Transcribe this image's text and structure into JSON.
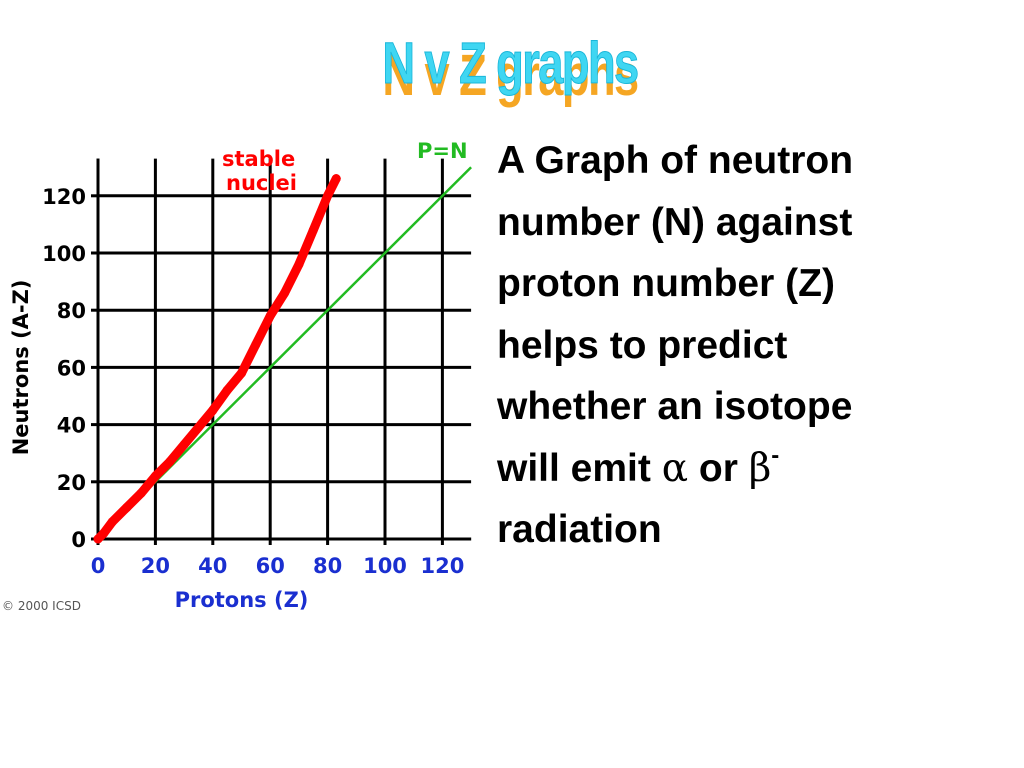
{
  "slide": {
    "title": "N v Z graphs",
    "copyright": "© 2000 ICSD"
  },
  "description": {
    "line1": "A Graph of neutron",
    "line2": "number (N) against",
    "line3": "proton number (Z)",
    "line4": "helps to predict",
    "line5_prefix": "whether an isotope",
    "line6_prefix": "will emit ",
    "alpha": "α",
    "or": " or ",
    "beta": "β",
    "beta_sup": "-",
    "line7": "radiation"
  },
  "chart_data": {
    "type": "line",
    "xlabel": "Protons  (Z)",
    "ylabel": "Neutrons  (A-Z)",
    "xlim": [
      0,
      130
    ],
    "ylim": [
      0,
      133
    ],
    "xticks": [
      0,
      20,
      40,
      60,
      80,
      100,
      120
    ],
    "yticks": [
      0,
      20,
      40,
      60,
      80,
      100,
      120
    ],
    "grid": true,
    "series": [
      {
        "name": "stable nuclei",
        "color": "#ff0000",
        "points": [
          [
            0,
            0
          ],
          [
            2,
            2
          ],
          [
            5,
            6
          ],
          [
            10,
            11
          ],
          [
            15,
            16
          ],
          [
            20,
            22
          ],
          [
            25,
            27
          ],
          [
            30,
            33
          ],
          [
            35,
            39
          ],
          [
            40,
            45
          ],
          [
            45,
            52
          ],
          [
            50,
            58
          ],
          [
            55,
            68
          ],
          [
            60,
            78
          ],
          [
            65,
            86
          ],
          [
            70,
            96
          ],
          [
            75,
            108
          ],
          [
            80,
            120
          ],
          [
            83,
            126
          ]
        ]
      },
      {
        "name": "P=N",
        "color": "#22bb22",
        "points": [
          [
            0,
            0
          ],
          [
            130,
            130
          ]
        ]
      }
    ],
    "annotations": [
      {
        "text": "stable",
        "color": "#ff0000"
      },
      {
        "text": "nuclei",
        "color": "#ff0000"
      },
      {
        "text": "P=N",
        "color": "#22bb22"
      }
    ]
  }
}
